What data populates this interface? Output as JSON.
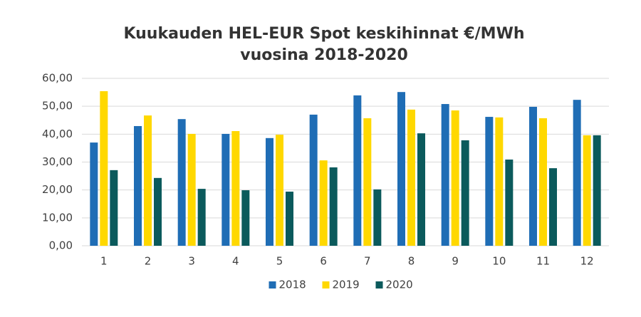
{
  "chart_data": {
    "type": "bar",
    "title": [
      "Kuukauden HEL-EUR Spot keskihinnat €/MWh",
      "vuosina 2018-2020"
    ],
    "categories": [
      "1",
      "2",
      "3",
      "4",
      "5",
      "6",
      "7",
      "8",
      "9",
      "10",
      "11",
      "12"
    ],
    "series": [
      {
        "name": "2018",
        "color": "#1f6db5",
        "values": [
          37.0,
          42.9,
          45.4,
          40.1,
          38.6,
          47.0,
          53.9,
          55.1,
          50.8,
          46.2,
          49.8,
          52.3
        ]
      },
      {
        "name": "2019",
        "color": "#ffd800",
        "values": [
          55.4,
          46.7,
          40.1,
          41.1,
          39.8,
          30.6,
          45.7,
          48.8,
          48.5,
          46.0,
          45.7,
          39.6
        ]
      },
      {
        "name": "2020",
        "color": "#0b5a5c",
        "values": [
          27.1,
          24.3,
          20.4,
          19.9,
          19.4,
          28.1,
          20.2,
          40.3,
          37.8,
          30.9,
          27.8,
          39.6
        ]
      }
    ],
    "ylim": [
      0,
      60
    ],
    "yticks": [
      {
        "value": 0,
        "label": "0,00"
      },
      {
        "value": 10,
        "label": "10,00"
      },
      {
        "value": 20,
        "label": "20,00"
      },
      {
        "value": 30,
        "label": "30,00"
      },
      {
        "value": 40,
        "label": "40,00"
      },
      {
        "value": 50,
        "label": "50,00"
      },
      {
        "value": 60,
        "label": "60,00"
      }
    ],
    "grid": true,
    "legend": "bottom"
  }
}
